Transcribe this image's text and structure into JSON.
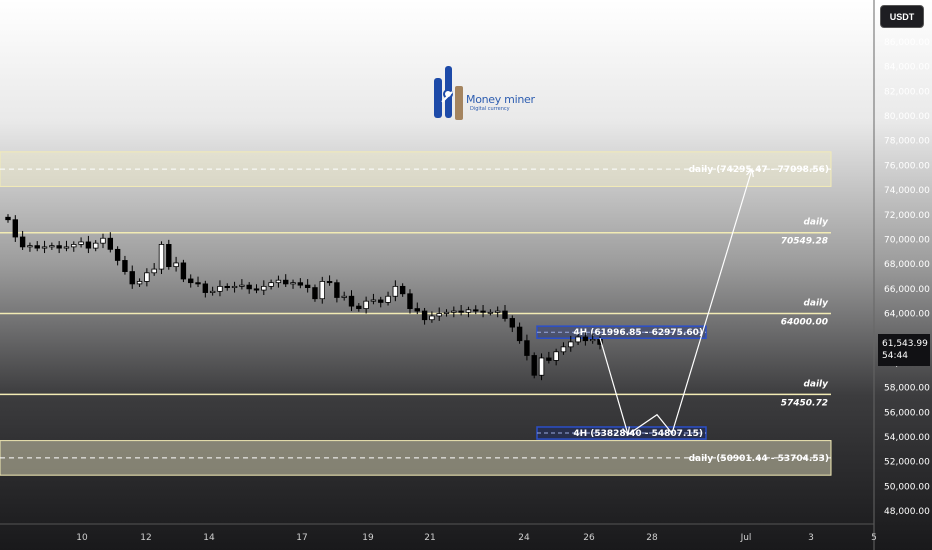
{
  "currency": "USDT",
  "current_price": "61,543.99",
  "countdown": "54:44",
  "logo": {
    "name": "Money miner",
    "tagline": "Digital currency"
  },
  "chart_data": {
    "type": "candlestick",
    "title": "",
    "xlabel": "",
    "ylabel": "",
    "ylim": [
      46600,
      87200
    ],
    "y_ticks": [
      48000,
      50000,
      52000,
      54000,
      56000,
      58000,
      60000,
      62000,
      64000,
      66000,
      68000,
      70000,
      72000,
      74000,
      76000,
      78000,
      80000,
      82000,
      84000,
      86000
    ],
    "y_tick_labels": [
      "48,000.00",
      "50,000.00",
      "52,000.00",
      "54,000.00",
      "56,000.00",
      "58,000.00",
      "60,000.00",
      "62,000.00",
      "64,000.00",
      "66,000.00",
      "68,000.00",
      "70,000.00",
      "72,000.00",
      "74,000.00",
      "76,000.00",
      "78,000.00",
      "80,000.00",
      "82,000.00",
      "84,000.00",
      "86,000.00"
    ],
    "x_ticks": [
      "10",
      "12",
      "14",
      "17",
      "19",
      "21",
      "24",
      "26",
      "28",
      "Jul",
      "3",
      "5"
    ],
    "zones": [
      {
        "label": "daily (74295.47 - 77098.56)",
        "low": 74295.47,
        "high": 77098.56
      },
      {
        "label": "daily (50901.44 - 53704.53)",
        "low": 50901.44,
        "high": 53704.53
      }
    ],
    "levels": [
      {
        "name": "daily",
        "value_label": "70549.28",
        "value": 70549.28
      },
      {
        "name": "daily",
        "value_label": "64000.00",
        "value": 64000.0
      },
      {
        "name": "daily",
        "value_label": "57450.72",
        "value": 57450.72
      }
    ],
    "boxes": [
      {
        "label": "4H (61996.85 - 62975.60)",
        "low": 61996.85,
        "high": 62975.6
      },
      {
        "label": "4H (53828.40 - 54807.15)",
        "low": 53828.4,
        "high": 54807.15
      }
    ],
    "close_series": [
      71600,
      70200,
      69400,
      69500,
      69300,
      69400,
      69500,
      69300,
      69400,
      69600,
      69800,
      69300,
      69700,
      70100,
      69200,
      68300,
      67400,
      66400,
      66600,
      67300,
      67600,
      69600,
      67800,
      68100,
      66800,
      66500,
      66400,
      65700,
      65800,
      66200,
      66100,
      66200,
      66300,
      66000,
      65900,
      66200,
      66500,
      66700,
      66400,
      66500,
      66300,
      66100,
      65200,
      66600,
      66500,
      65300,
      65400,
      64600,
      64400,
      65000,
      65100,
      64900,
      65400,
      66200,
      65600,
      64400,
      64200,
      63500,
      63800,
      64000,
      64100,
      64200,
      64100,
      64300,
      64200,
      64100,
      64100,
      64200,
      63600,
      62900,
      61800,
      60600,
      59000,
      60400,
      60200,
      60900,
      61300,
      61700,
      62100,
      61800,
      61900,
      61500
    ],
    "projection": [
      {
        "x_label": "26",
        "price": 62000
      },
      {
        "x_label": "27",
        "price": 54200
      },
      {
        "x_label": "27.5",
        "price": 55800
      },
      {
        "x_label": "28",
        "price": 54300
      },
      {
        "x_label": "29.5",
        "price": 75700
      }
    ]
  }
}
